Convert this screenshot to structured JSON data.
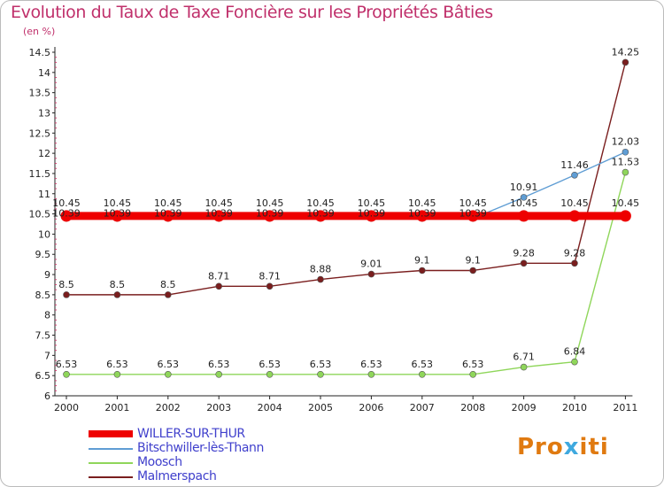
{
  "title": "Evolution du Taux de Taxe Foncière sur les Propriétés Bâties",
  "unit": "(en %)",
  "logo": {
    "text_a": "Pro",
    "text_x": "x",
    "text_b": "iti"
  },
  "chart_data": {
    "type": "line",
    "title": "Evolution du Taux de Taxe Foncière sur les Propriétés Bâties",
    "ylabel": "(en %)",
    "ylim": [
      6,
      14.5
    ],
    "yticks": [
      "6",
      "6.5",
      "7",
      "7.5",
      "8",
      "8.5",
      "9",
      "9.5",
      "10",
      "10.5",
      "11",
      "11.5",
      "12",
      "12.5",
      "13",
      "13.5",
      "14",
      "14.5"
    ],
    "categories": [
      "2000",
      "2001",
      "2002",
      "2003",
      "2004",
      "2005",
      "2006",
      "2007",
      "2008",
      "2009",
      "2010",
      "2011"
    ],
    "series": [
      {
        "name": "WILLER-SUR-THUR",
        "color": "#ee0000",
        "values": [
          10.45,
          10.45,
          10.45,
          10.45,
          10.45,
          10.45,
          10.45,
          10.45,
          10.45,
          10.45,
          10.45,
          10.45
        ],
        "labels": [
          "10.45",
          "10.45",
          "10.45",
          "10.45",
          "10.45",
          "10.45",
          "10.45",
          "10.45",
          "10.45",
          "10.45",
          "10.45",
          "10.45"
        ]
      },
      {
        "name": "Bitschwiller-lès-Thann",
        "color": "#5f9dd4",
        "values": [
          10.39,
          10.39,
          10.39,
          10.39,
          10.39,
          10.39,
          10.39,
          10.39,
          10.39,
          10.91,
          11.46,
          12.03
        ],
        "labels": [
          "10.39",
          "10.39",
          "10.39",
          "10.39",
          "10.39",
          "10.39",
          "10.39",
          "10.39",
          "10.39",
          "10.91",
          "11.46",
          "12.03"
        ]
      },
      {
        "name": "Moosch",
        "color": "#8fd65a",
        "values": [
          6.53,
          6.53,
          6.53,
          6.53,
          6.53,
          6.53,
          6.53,
          6.53,
          6.53,
          6.71,
          6.84,
          11.53
        ],
        "labels": [
          "6.53",
          "6.53",
          "6.53",
          "6.53",
          "6.53",
          "6.53",
          "6.53",
          "6.53",
          "6.53",
          "6.71",
          "6.84",
          "11.53"
        ]
      },
      {
        "name": "Malmerspach",
        "color": "#7a1e1e",
        "values": [
          8.5,
          8.5,
          8.5,
          8.71,
          8.71,
          8.88,
          9.01,
          9.1,
          9.1,
          9.28,
          9.28,
          14.25
        ],
        "labels": [
          "8.5",
          "8.5",
          "8.5",
          "8.71",
          "8.71",
          "8.88",
          "9.01",
          "9.1",
          "9.1",
          "9.28",
          "9.28",
          "14.25"
        ]
      }
    ]
  }
}
